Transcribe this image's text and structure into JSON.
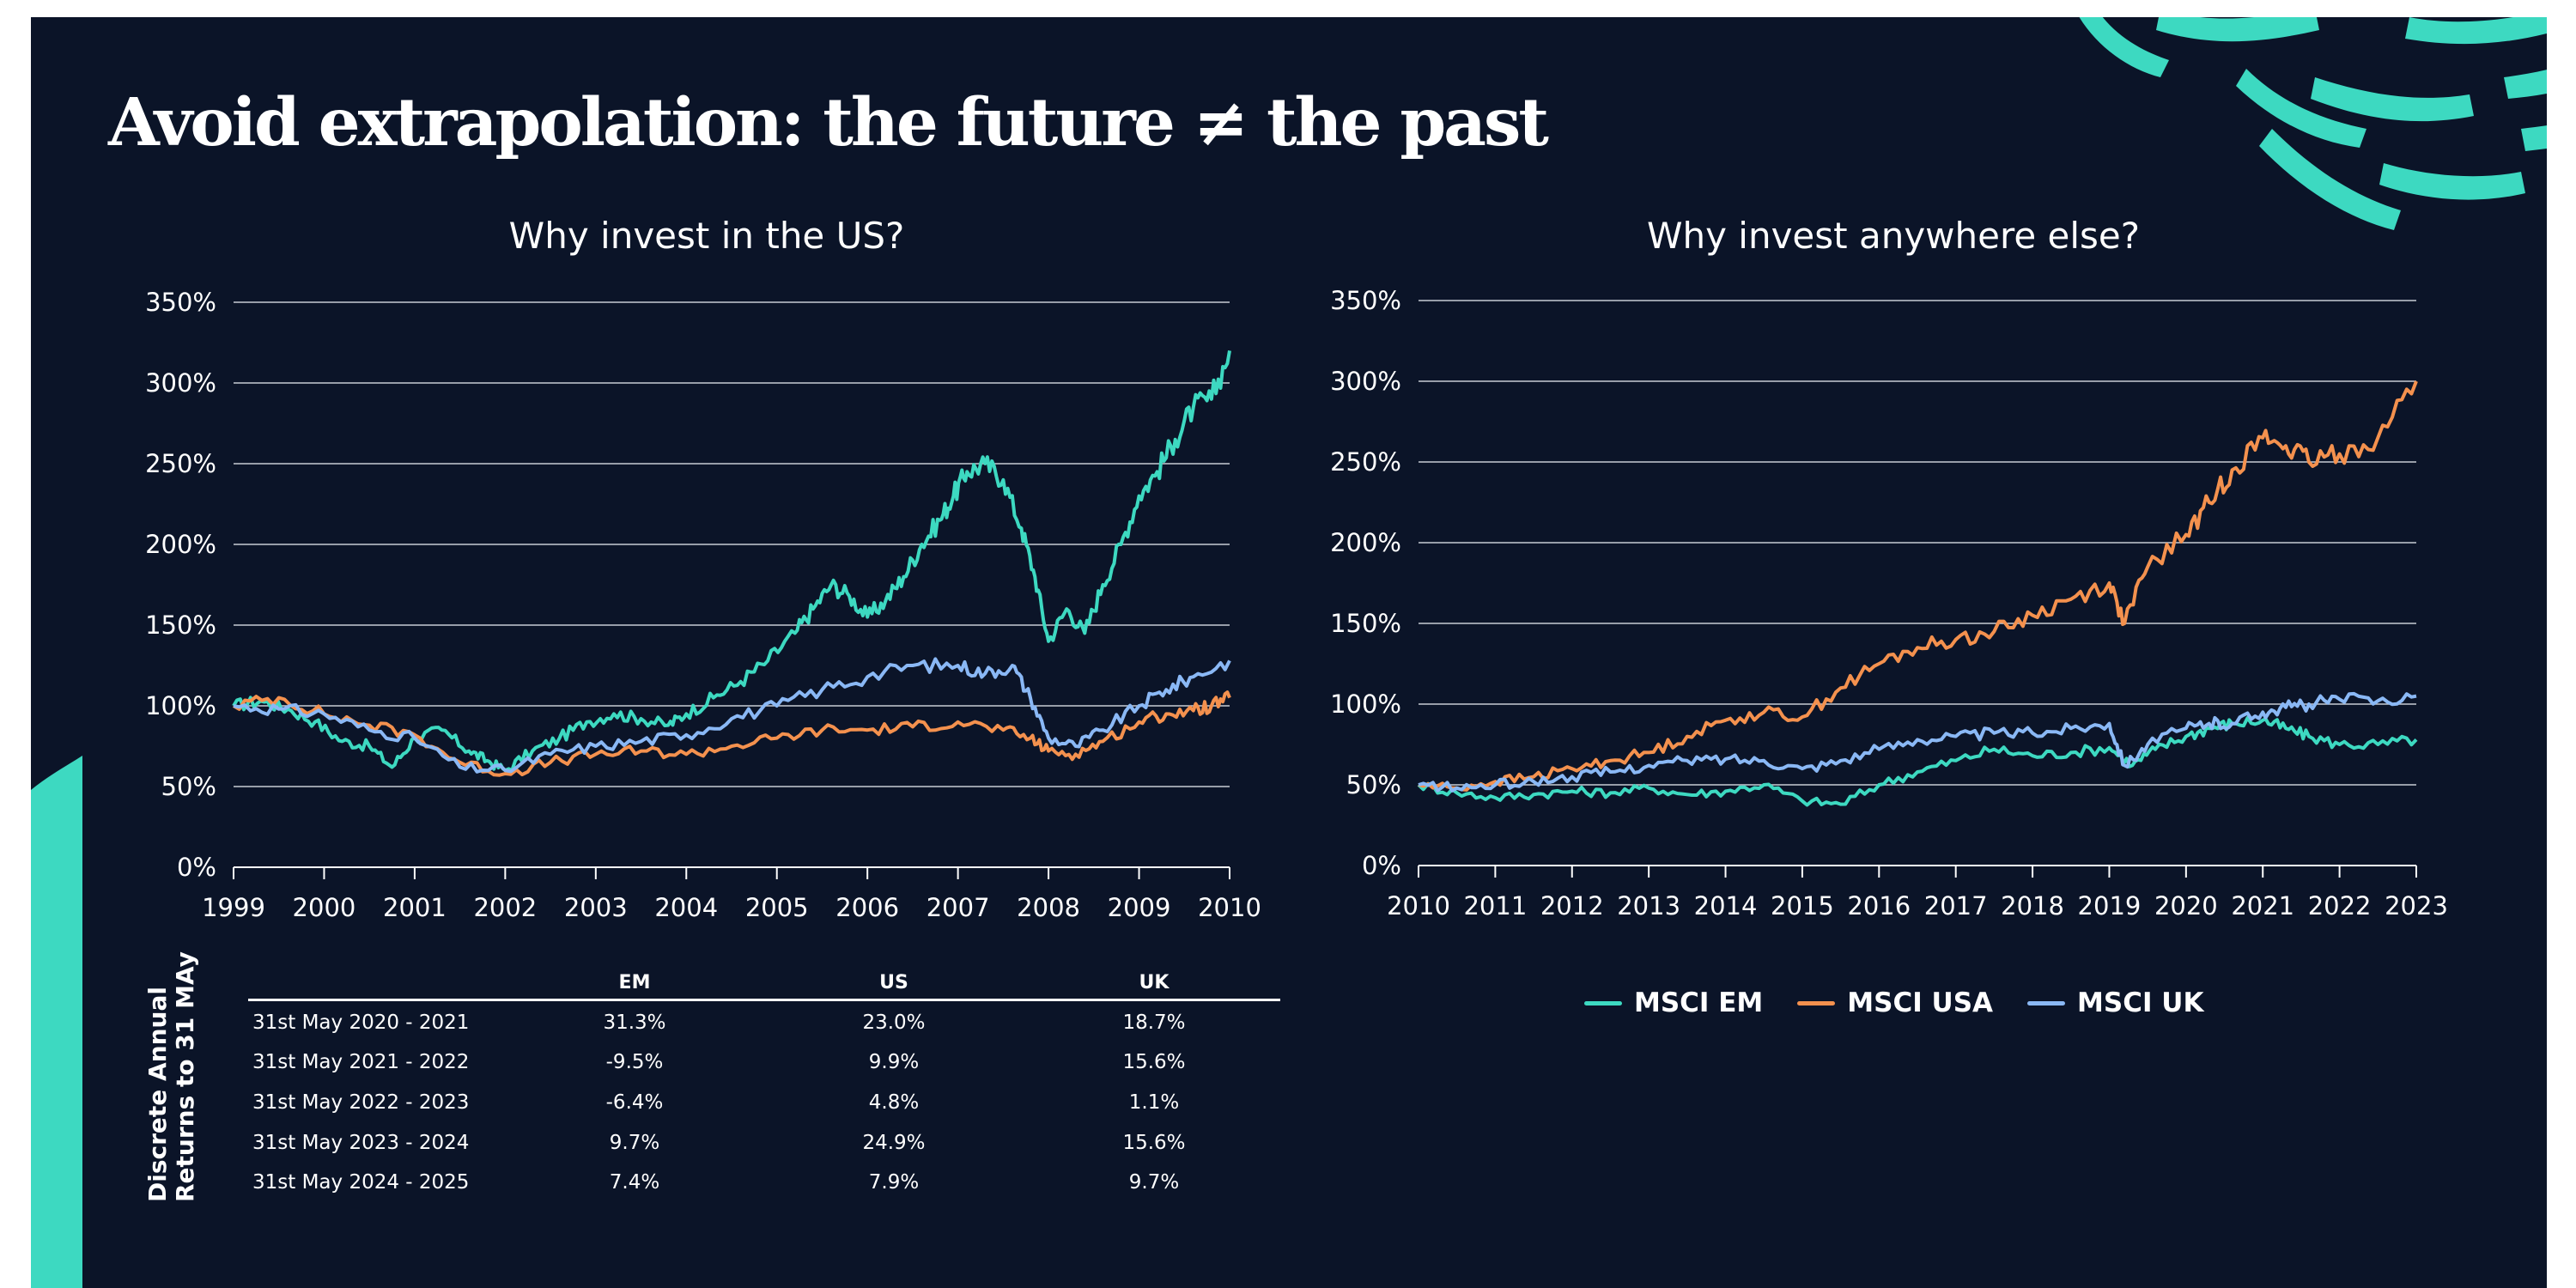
{
  "title": "Avoid extrapolation: the future ≠ the past",
  "colors": {
    "background": "#0b1428",
    "em": "#3dd9c1",
    "usa": "#f4914e",
    "uk": "#8ab8f5",
    "accent_brush": "#3dd9c1"
  },
  "chart_data": [
    {
      "type": "line",
      "title": "Why invest in the US?",
      "xlabel": "",
      "ylabel": "",
      "x_ticks": [
        "1999",
        "2000",
        "2001",
        "2002",
        "2003",
        "2004",
        "2005",
        "2006",
        "2007",
        "2008",
        "2009",
        "2010"
      ],
      "y_ticks": [
        "0%",
        "50%",
        "100%",
        "150%",
        "200%",
        "250%",
        "300%",
        "350%"
      ],
      "xlim": [
        1999,
        2010
      ],
      "ylim": [
        0,
        350
      ],
      "grid": "horizontal",
      "series": [
        {
          "name": "MSCI EM",
          "color_key": "em",
          "x": [
            1999.0,
            1999.3,
            1999.6,
            1999.9,
            2000.2,
            2000.5,
            2000.75,
            2001.0,
            2001.3,
            2001.6,
            2001.8,
            2002.0,
            2002.3,
            2002.6,
            2002.9,
            2003.2,
            2003.5,
            2003.8,
            2004.0,
            2004.3,
            2004.6,
            2004.9,
            2005.2,
            2005.4,
            2005.6,
            2005.8,
            2006.0,
            2006.2,
            2006.4,
            2006.6,
            2006.8,
            2006.95,
            2007.1,
            2007.3,
            2007.5,
            2007.7,
            2007.85,
            2008.0,
            2008.2,
            2008.4,
            2008.6,
            2008.8,
            2009.0,
            2009.2,
            2009.4,
            2009.6,
            2009.8,
            2010.0
          ],
          "y": [
            100,
            103,
            98,
            90,
            78,
            75,
            62,
            80,
            85,
            72,
            66,
            60,
            72,
            80,
            90,
            95,
            92,
            88,
            95,
            105,
            115,
            128,
            145,
            160,
            175,
            168,
            155,
            165,
            180,
            200,
            215,
            230,
            245,
            250,
            240,
            210,
            180,
            140,
            160,
            145,
            175,
            200,
            230,
            245,
            265,
            285,
            290,
            320
          ]
        },
        {
          "name": "MSCI USA",
          "color_key": "usa",
          "x": [
            1999.0,
            1999.5,
            2000.0,
            2000.5,
            2001.0,
            2001.5,
            2002.0,
            2002.5,
            2003.0,
            2003.5,
            2004.0,
            2004.5,
            2005.0,
            2005.5,
            2006.0,
            2006.5,
            2007.0,
            2007.5,
            2007.8,
            2008.0,
            2008.3,
            2008.6,
            2009.0,
            2009.3,
            2009.6,
            2009.8,
            2010.0
          ],
          "y": [
            100,
            105,
            95,
            88,
            82,
            65,
            58,
            65,
            70,
            72,
            70,
            75,
            80,
            85,
            85,
            87,
            90,
            85,
            80,
            72,
            70,
            78,
            90,
            95,
            97,
            100,
            105
          ]
        },
        {
          "name": "MSCI UK",
          "color_key": "uk",
          "x": [
            1999.0,
            1999.5,
            2000.0,
            2000.5,
            2001.0,
            2001.5,
            2002.0,
            2002.5,
            2003.0,
            2003.5,
            2004.0,
            2004.5,
            2005.0,
            2005.5,
            2006.0,
            2006.5,
            2007.0,
            2007.3,
            2007.6,
            2007.8,
            2008.0,
            2008.3,
            2008.6,
            2009.0,
            2009.3,
            2009.6,
            2010.0
          ],
          "y": [
            100,
            98,
            95,
            85,
            80,
            62,
            60,
            70,
            75,
            78,
            82,
            92,
            100,
            110,
            118,
            125,
            125,
            120,
            125,
            105,
            80,
            75,
            85,
            100,
            110,
            118,
            128
          ]
        }
      ]
    },
    {
      "type": "line",
      "title": "Why invest anywhere else?",
      "xlabel": "",
      "ylabel": "",
      "x_ticks": [
        "2010",
        "2011",
        "2012",
        "2013",
        "2014",
        "2015",
        "2016",
        "2017",
        "2018",
        "2019",
        "2020",
        "2021",
        "2022",
        "2023"
      ],
      "y_ticks": [
        "0%",
        "50%",
        "100%",
        "150%",
        "200%",
        "250%",
        "300%",
        "350%"
      ],
      "xlim": [
        2010,
        2023
      ],
      "ylim": [
        0,
        350
      ],
      "grid": "horizontal",
      "legend": "bottom",
      "series": [
        {
          "name": "MSCI EM",
          "color_key": "em",
          "x": [
            2010.0,
            2010.5,
            2011.0,
            2011.5,
            2012.0,
            2012.5,
            2013.0,
            2013.5,
            2014.0,
            2014.5,
            2015.0,
            2015.5,
            2016.0,
            2016.5,
            2017.0,
            2017.5,
            2018.0,
            2018.5,
            2019.0,
            2019.3,
            2019.6,
            2020.0,
            2020.3,
            2020.6,
            2021.0,
            2021.3,
            2021.6,
            2022.0,
            2022.5,
            2023.0
          ],
          "y": [
            50,
            45,
            42,
            44,
            46,
            45,
            48,
            44,
            46,
            50,
            40,
            38,
            50,
            58,
            65,
            72,
            68,
            70,
            73,
            62,
            72,
            80,
            85,
            88,
            90,
            85,
            80,
            75,
            75,
            78
          ]
        },
        {
          "name": "MSCI USA",
          "color_key": "usa",
          "x": [
            2010.0,
            2010.5,
            2011.0,
            2011.5,
            2012.0,
            2012.5,
            2013.0,
            2013.5,
            2014.0,
            2014.5,
            2015.0,
            2015.5,
            2016.0,
            2016.5,
            2017.0,
            2017.5,
            2018.0,
            2018.5,
            2019.0,
            2019.2,
            2019.5,
            2020.0,
            2020.3,
            2020.6,
            2021.0,
            2021.3,
            2021.6,
            2022.0,
            2022.5,
            2023.0
          ],
          "y": [
            50,
            48,
            52,
            55,
            60,
            65,
            70,
            80,
            90,
            95,
            92,
            110,
            125,
            135,
            140,
            145,
            155,
            165,
            175,
            150,
            185,
            205,
            225,
            245,
            265,
            260,
            250,
            255,
            265,
            300
          ]
        },
        {
          "name": "MSCI UK",
          "color_key": "uk",
          "x": [
            2010.0,
            2010.5,
            2011.0,
            2011.5,
            2012.0,
            2012.5,
            2013.0,
            2013.5,
            2014.0,
            2014.5,
            2015.0,
            2015.5,
            2016.0,
            2016.5,
            2017.0,
            2017.5,
            2018.0,
            2018.5,
            2019.0,
            2019.2,
            2019.5,
            2020.0,
            2020.3,
            2020.6,
            2021.0,
            2021.3,
            2021.6,
            2022.0,
            2022.5,
            2023.0
          ],
          "y": [
            50,
            48,
            50,
            52,
            55,
            58,
            62,
            65,
            66,
            65,
            60,
            65,
            72,
            78,
            80,
            82,
            82,
            85,
            88,
            62,
            75,
            85,
            88,
            88,
            95,
            98,
            100,
            103,
            102,
            105
          ]
        }
      ]
    }
  ],
  "table": {
    "side_label": [
      "Discrete Annual",
      "Returns to 31 MAy"
    ],
    "headers": [
      "EM",
      "US",
      "UK"
    ],
    "rows": [
      {
        "period": "31st May 2020 - 2021",
        "em": "31.3%",
        "us": "23.0%",
        "uk": "18.7%"
      },
      {
        "period": "31st May 2021 - 2022",
        "em": "-9.5%",
        "us": "9.9%",
        "uk": "15.6%"
      },
      {
        "period": "31st May 2022 - 2023",
        "em": "-6.4%",
        "us": "4.8%",
        "uk": "1.1%"
      },
      {
        "period": "31st May 2023 - 2024",
        "em": "9.7%",
        "us": "24.9%",
        "uk": "15.6%"
      },
      {
        "period": "31st May 2024 - 2025",
        "em": "7.4%",
        "us": "7.9%",
        "uk": "9.7%"
      }
    ]
  },
  "legend": [
    {
      "label": "MSCI EM",
      "color_key": "em"
    },
    {
      "label": "MSCI USA",
      "color_key": "usa"
    },
    {
      "label": "MSCI UK",
      "color_key": "uk"
    }
  ]
}
